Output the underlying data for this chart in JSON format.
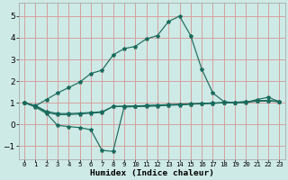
{
  "xlabel": "Humidex (Indice chaleur)",
  "xlim": [
    -0.5,
    23.5
  ],
  "ylim": [
    -1.6,
    5.6
  ],
  "yticks": [
    -1,
    0,
    1,
    2,
    3,
    4,
    5
  ],
  "xticks": [
    0,
    1,
    2,
    3,
    4,
    5,
    6,
    7,
    8,
    9,
    10,
    11,
    12,
    13,
    14,
    15,
    16,
    17,
    18,
    19,
    20,
    21,
    22,
    23
  ],
  "bg_color": "#ceeae6",
  "grid_color": "#d4a0a0",
  "line_color": "#1a6b5c",
  "series": [
    [
      1.0,
      0.85,
      1.15,
      1.45,
      1.7,
      1.95,
      2.35,
      2.5,
      3.2,
      3.5,
      3.6,
      3.95,
      4.1,
      4.75,
      5.0,
      4.1,
      2.55,
      1.45,
      1.05,
      1.0,
      1.0,
      1.15,
      1.25,
      1.05
    ],
    [
      1.0,
      0.8,
      0.5,
      -0.05,
      -0.1,
      -0.15,
      -0.25,
      -1.2,
      -1.25,
      0.8,
      0.82,
      0.83,
      0.85,
      0.88,
      0.9,
      0.93,
      0.95,
      0.97,
      1.0,
      1.02,
      1.05,
      1.1,
      1.1,
      1.05
    ],
    [
      1.0,
      0.85,
      0.55,
      0.45,
      0.45,
      0.48,
      0.52,
      0.55,
      0.82,
      0.83,
      0.84,
      0.86,
      0.88,
      0.9,
      0.92,
      0.94,
      0.96,
      0.98,
      1.0,
      1.01,
      1.03,
      1.07,
      1.08,
      1.05
    ],
    [
      1.0,
      0.87,
      0.6,
      0.5,
      0.5,
      0.52,
      0.55,
      0.58,
      0.83,
      0.84,
      0.85,
      0.87,
      0.89,
      0.91,
      0.93,
      0.95,
      0.97,
      0.99,
      1.0,
      1.01,
      1.04,
      1.08,
      1.09,
      1.06
    ]
  ]
}
